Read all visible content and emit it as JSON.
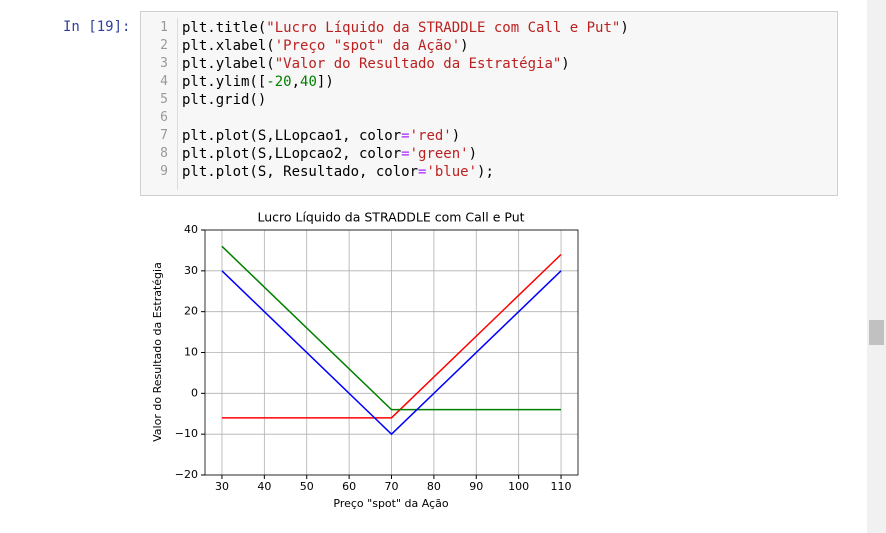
{
  "prompt": "In [19]:",
  "code": {
    "lines": [
      {
        "number": 1,
        "text": "plt.title(\"Lucro Líquido da STRADDLE com Call e Put\")"
      },
      {
        "number": 2,
        "text": "plt.xlabel('Preço \"spot\" da Ação')"
      },
      {
        "number": 3,
        "text": "plt.ylabel(\"Valor do Resultado da Estratégia\")"
      },
      {
        "number": 4,
        "text": "plt.ylim([-20,40])"
      },
      {
        "number": 5,
        "text": "plt.grid()"
      },
      {
        "number": 6
      },
      {
        "number": 7,
        "text": "plt.plot(S,LLopcao1, color='red')"
      },
      {
        "number": 8,
        "text": "plt.plot(S,LLopcao2, color='green')"
      },
      {
        "number": 9,
        "text": "plt.plot(S, Resultado, color='blue');"
      }
    ]
  },
  "chart_data": {
    "type": "line",
    "title": "Lucro Líquido da STRADDLE com Call e Put",
    "xlabel": "Preço \"spot\" da Ação",
    "ylabel": "Valor do Resultado da Estratégia",
    "x": [
      30,
      70,
      110
    ],
    "series": [
      {
        "color": "red",
        "values": [
          -6,
          -6,
          34
        ]
      },
      {
        "color": "green",
        "values": [
          36,
          -4,
          -4
        ]
      },
      {
        "color": "blue",
        "values": [
          30,
          -10,
          30
        ]
      }
    ],
    "xlim": [
      26,
      114
    ],
    "ylim": [
      -20,
      40
    ],
    "xticks": [
      30,
      40,
      50,
      60,
      70,
      80,
      90,
      100,
      110
    ],
    "yticks": [
      {
        "value": -20,
        "label": "−20"
      },
      {
        "value": -10,
        "label": "−10"
      },
      0,
      10,
      20,
      30,
      40
    ],
    "grid": true
  }
}
